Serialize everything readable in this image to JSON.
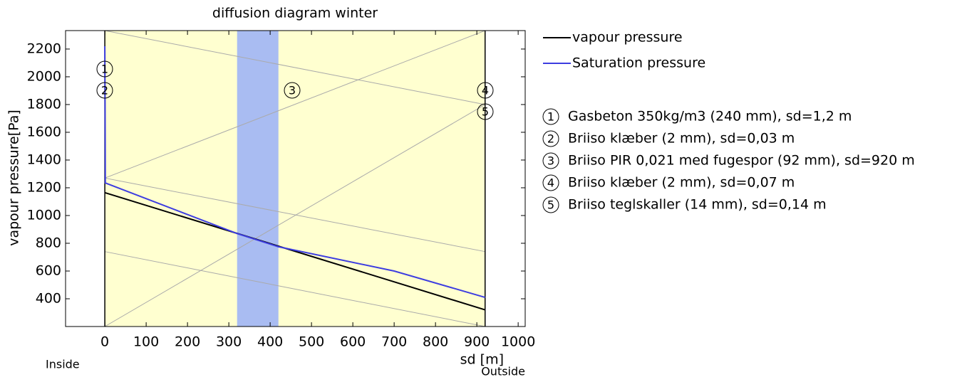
{
  "chart_data": {
    "type": "line",
    "title": "diffusion diagram winter",
    "x_label": "sd [m]",
    "y_label": "vapour pressure[Pa]",
    "x_left_label": "Inside",
    "x_right_label": "Outside",
    "xlim": [
      -95,
      1017
    ],
    "ylim": [
      200,
      2333
    ],
    "xticks": [
      0,
      100,
      200,
      300,
      400,
      500,
      600,
      700,
      800,
      900,
      1000
    ],
    "yticks": [
      400,
      600,
      800,
      1000,
      1200,
      1400,
      1600,
      1800,
      2000,
      2200
    ],
    "grid": false,
    "legend": "upper right",
    "regions": [
      {
        "x": [
          0,
          920
        ],
        "color": "#ffffd0"
      },
      {
        "x": [
          320,
          420
        ],
        "color": "#a9bcf2"
      }
    ],
    "series": [
      {
        "name": "vapour pressure",
        "color": "#000000",
        "x": [
          0,
          920
        ],
        "values": [
          1165,
          320
        ]
      },
      {
        "name": "Saturation pressure",
        "color": "#3d3de0",
        "x": [
          0,
          0.6,
          1.2,
          1.23,
          320,
          420,
          700,
          920
        ],
        "values": [
          2220,
          1800,
          1240,
          1235,
          870,
          775,
          600,
          410
        ]
      }
    ],
    "layers": [
      {
        "number": "1",
        "text": "Gasbeton 350kg/m3 (240 mm), sd=1,2 m"
      },
      {
        "number": "2",
        "text": "Briiso klæber (2 mm), sd=0,03 m"
      },
      {
        "number": "3",
        "text": "Briiso PIR 0,021 med fugespor (92 mm), sd=920 m"
      },
      {
        "number": "4",
        "text": "Briiso klæber (2 mm), sd=0,07 m"
      },
      {
        "number": "5",
        "text": "Briiso teglskaller (14 mm), sd=0,14 m"
      }
    ]
  }
}
